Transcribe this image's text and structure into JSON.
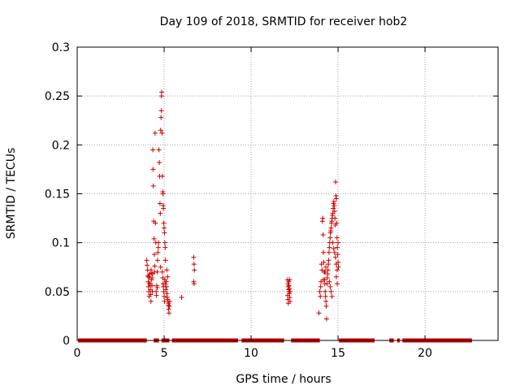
{
  "chart_data": {
    "type": "scatter",
    "title": "Day 109 of 2018, SRMTID for receiver hob2",
    "xlabel": "GPS time / hours",
    "ylabel": "SRMTID / TECUs",
    "xlim": [
      0,
      24.2
    ],
    "ylim": [
      0,
      0.3
    ],
    "xticks": [
      0,
      5,
      10,
      15,
      20
    ],
    "yticks": [
      0,
      0.05,
      0.1,
      0.15,
      0.2,
      0.25,
      0.3
    ],
    "xtick_labels": [
      "0",
      "5",
      "10",
      "15",
      "20"
    ],
    "ytick_labels": [
      "0",
      "0.05",
      "0.1",
      "0.15",
      "0.2",
      "0.25",
      "0.3"
    ],
    "grid": true,
    "marker": "+",
    "color": "#cc0000",
    "zero_segments": [
      [
        0.05,
        4.0
      ],
      [
        4.4,
        4.7
      ],
      [
        4.85,
        5.3
      ],
      [
        5.45,
        9.25
      ],
      [
        9.45,
        11.9
      ],
      [
        12.3,
        13.95
      ],
      [
        15.05,
        17.1
      ],
      [
        17.95,
        18.2
      ],
      [
        18.4,
        18.55
      ],
      [
        18.7,
        22.7
      ]
    ],
    "points": [
      [
        4.0,
        0.082
      ],
      [
        4.02,
        0.077
      ],
      [
        4.05,
        0.072
      ],
      [
        4.07,
        0.066
      ],
      [
        4.09,
        0.06
      ],
      [
        4.1,
        0.055
      ],
      [
        4.12,
        0.05
      ],
      [
        4.14,
        0.045
      ],
      [
        4.16,
        0.068
      ],
      [
        4.18,
        0.064
      ],
      [
        4.2,
        0.058
      ],
      [
        4.21,
        0.052
      ],
      [
        4.22,
        0.047
      ],
      [
        4.24,
        0.04
      ],
      [
        4.25,
        0.072
      ],
      [
        4.26,
        0.069
      ],
      [
        4.28,
        0.062
      ],
      [
        4.3,
        0.056
      ],
      [
        4.32,
        0.05
      ],
      [
        4.34,
        0.068
      ],
      [
        4.35,
        0.195
      ],
      [
        4.36,
        0.175
      ],
      [
        4.38,
        0.158
      ],
      [
        4.4,
        0.122
      ],
      [
        4.42,
        0.104
      ],
      [
        4.44,
        0.088
      ],
      [
        4.46,
        0.076
      ],
      [
        4.48,
        0.212
      ],
      [
        4.5,
        0.12
      ],
      [
        4.52,
        0.1
      ],
      [
        4.54,
        0.05
      ],
      [
        4.56,
        0.046
      ],
      [
        4.58,
        0.056
      ],
      [
        4.6,
        0.07
      ],
      [
        4.62,
        0.082
      ],
      [
        4.64,
        0.09
      ],
      [
        4.66,
        0.095
      ],
      [
        4.68,
        0.1
      ],
      [
        4.7,
        0.195
      ],
      [
        4.72,
        0.182
      ],
      [
        4.74,
        0.168
      ],
      [
        4.76,
        0.14
      ],
      [
        4.78,
        0.13
      ],
      [
        4.8,
        0.215
      ],
      [
        4.82,
        0.228
      ],
      [
        4.84,
        0.235
      ],
      [
        4.85,
        0.25
      ],
      [
        4.86,
        0.254
      ],
      [
        4.88,
        0.212
      ],
      [
        4.9,
        0.168
      ],
      [
        4.92,
        0.152
      ],
      [
        4.94,
        0.15
      ],
      [
        4.95,
        0.138
      ],
      [
        4.96,
        0.135
      ],
      [
        4.98,
        0.12
      ],
      [
        5.0,
        0.115
      ],
      [
        5.02,
        0.11
      ],
      [
        5.04,
        0.1
      ],
      [
        5.06,
        0.095
      ],
      [
        5.08,
        0.082
      ],
      [
        4.9,
        0.07
      ],
      [
        4.92,
        0.064
      ],
      [
        4.94,
        0.058
      ],
      [
        4.96,
        0.055
      ],
      [
        4.98,
        0.05
      ],
      [
        5.0,
        0.045
      ],
      [
        5.02,
        0.04
      ],
      [
        5.04,
        0.062
      ],
      [
        5.06,
        0.058
      ],
      [
        5.1,
        0.052
      ],
      [
        5.12,
        0.06
      ],
      [
        5.14,
        0.055
      ],
      [
        5.16,
        0.048
      ],
      [
        5.18,
        0.044
      ],
      [
        5.2,
        0.042
      ],
      [
        5.22,
        0.04
      ],
      [
        5.24,
        0.036
      ],
      [
        5.26,
        0.032
      ],
      [
        5.28,
        0.028
      ],
      [
        5.3,
        0.035
      ],
      [
        5.15,
        0.072
      ],
      [
        5.2,
        0.065
      ],
      [
        5.25,
        0.038
      ],
      [
        5.32,
        0.04
      ],
      [
        4.1,
        0.065
      ],
      [
        4.15,
        0.058
      ],
      [
        4.3,
        0.064
      ],
      [
        4.45,
        0.07
      ],
      [
        4.6,
        0.054
      ],
      [
        4.8,
        0.075
      ],
      [
        6.0,
        0.044
      ],
      [
        6.7,
        0.085
      ],
      [
        6.72,
        0.078
      ],
      [
        6.74,
        0.072
      ],
      [
        6.7,
        0.06
      ],
      [
        6.72,
        0.058
      ],
      [
        12.1,
        0.062
      ],
      [
        12.12,
        0.058
      ],
      [
        12.14,
        0.055
      ],
      [
        12.16,
        0.052
      ],
      [
        12.18,
        0.05
      ],
      [
        12.2,
        0.048
      ],
      [
        12.22,
        0.044
      ],
      [
        12.24,
        0.04
      ],
      [
        12.1,
        0.046
      ],
      [
        12.12,
        0.042
      ],
      [
        12.14,
        0.038
      ],
      [
        12.16,
        0.06
      ],
      [
        12.18,
        0.056
      ],
      [
        12.2,
        0.053
      ],
      [
        12.22,
        0.062
      ],
      [
        12.24,
        0.05
      ],
      [
        13.9,
        0.028
      ],
      [
        13.95,
        0.05
      ],
      [
        13.98,
        0.045
      ],
      [
        14.0,
        0.055
      ],
      [
        14.02,
        0.06
      ],
      [
        14.05,
        0.078
      ],
      [
        14.08,
        0.072
      ],
      [
        14.1,
        0.122
      ],
      [
        14.12,
        0.125
      ],
      [
        14.14,
        0.108
      ],
      [
        14.16,
        0.09
      ],
      [
        14.18,
        0.08
      ],
      [
        14.2,
        0.07
      ],
      [
        14.22,
        0.062
      ],
      [
        14.24,
        0.058
      ],
      [
        14.26,
        0.05
      ],
      [
        14.28,
        0.045
      ],
      [
        14.3,
        0.04
      ],
      [
        14.32,
        0.035
      ],
      [
        14.34,
        0.022
      ],
      [
        14.36,
        0.058
      ],
      [
        14.38,
        0.064
      ],
      [
        14.4,
        0.068
      ],
      [
        14.42,
        0.072
      ],
      [
        14.44,
        0.078
      ],
      [
        14.46,
        0.082
      ],
      [
        14.48,
        0.09
      ],
      [
        14.5,
        0.095
      ],
      [
        14.52,
        0.1
      ],
      [
        14.54,
        0.105
      ],
      [
        14.56,
        0.11
      ],
      [
        14.58,
        0.112
      ],
      [
        14.6,
        0.115
      ],
      [
        14.62,
        0.12
      ],
      [
        14.64,
        0.122
      ],
      [
        14.66,
        0.125
      ],
      [
        14.68,
        0.128
      ],
      [
        14.7,
        0.13
      ],
      [
        14.72,
        0.135
      ],
      [
        14.74,
        0.14
      ],
      [
        14.76,
        0.142
      ],
      [
        14.78,
        0.138
      ],
      [
        14.8,
        0.132
      ],
      [
        14.82,
        0.125
      ],
      [
        14.84,
        0.118
      ],
      [
        14.86,
        0.162
      ],
      [
        14.88,
        0.148
      ],
      [
        14.9,
        0.145
      ],
      [
        14.92,
        0.12
      ],
      [
        14.94,
        0.105
      ],
      [
        14.96,
        0.095
      ],
      [
        14.98,
        0.088
      ],
      [
        15.0,
        0.08
      ],
      [
        15.02,
        0.075
      ],
      [
        14.5,
        0.06
      ],
      [
        14.55,
        0.055
      ],
      [
        14.6,
        0.05
      ],
      [
        14.65,
        0.045
      ],
      [
        14.7,
        0.1
      ],
      [
        14.75,
        0.094
      ],
      [
        14.8,
        0.09
      ],
      [
        14.85,
        0.085
      ],
      [
        14.9,
        0.078
      ],
      [
        14.95,
        0.072
      ],
      [
        14.9,
        0.065
      ],
      [
        14.95,
        0.058
      ],
      [
        15.0,
        0.1
      ],
      [
        14.3,
        0.075
      ],
      [
        14.25,
        0.07
      ],
      [
        14.15,
        0.062
      ]
    ]
  }
}
